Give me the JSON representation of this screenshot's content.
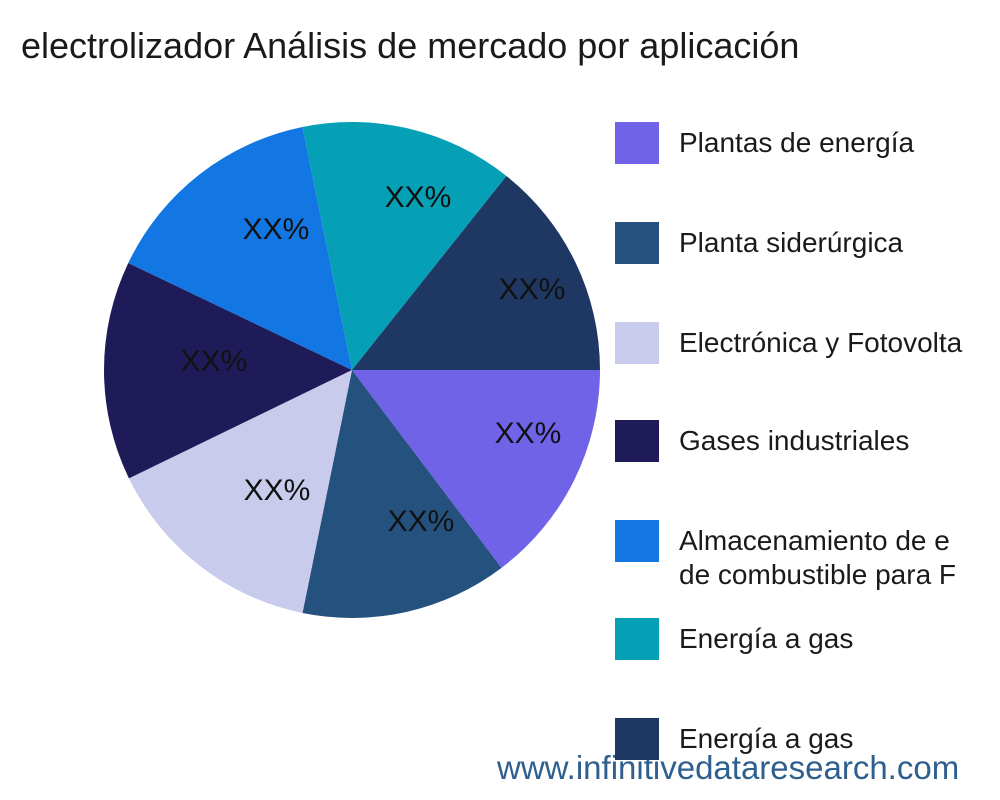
{
  "title": "electrolizador Análisis de mercado por aplicación",
  "watermark": {
    "text": "www.infinitivedataresearch.com",
    "color": "#2F5F8F"
  },
  "chart_data": {
    "type": "pie",
    "title": "electrolizador Análisis de mercado por aplicación",
    "legend_position": "right",
    "start_angle_deg": 0,
    "direction": "clockwise",
    "slices": [
      {
        "legend_lines": [
          "Plantas de energía"
        ],
        "data_label": "XX%",
        "value_pct": 14.7,
        "color": "#7163E8"
      },
      {
        "legend_lines": [
          "Planta siderúrgica"
        ],
        "data_label": "XX%",
        "value_pct": 13.5,
        "color": "#25517E"
      },
      {
        "legend_lines": [
          "Electrónica y Fotovolta"
        ],
        "data_label": "XX%",
        "value_pct": 14.6,
        "color": "#C8CBEC"
      },
      {
        "legend_lines": [
          "Gases industriales"
        ],
        "data_label": "XX%",
        "value_pct": 14.3,
        "color": "#1F1B58"
      },
      {
        "legend_lines": [
          "Almacenamiento de e",
          "de combustible para F"
        ],
        "data_label": "XX%",
        "value_pct": 14.7,
        "color": "#1277E3"
      },
      {
        "legend_lines": [
          "Energía a gas"
        ],
        "data_label": "XX%",
        "value_pct": 13.9,
        "color": "#06A0B6"
      },
      {
        "legend_lines": [
          "Energía a gas"
        ],
        "data_label": "XX%",
        "value_pct": 14.3,
        "color": "#1E3763"
      }
    ]
  }
}
